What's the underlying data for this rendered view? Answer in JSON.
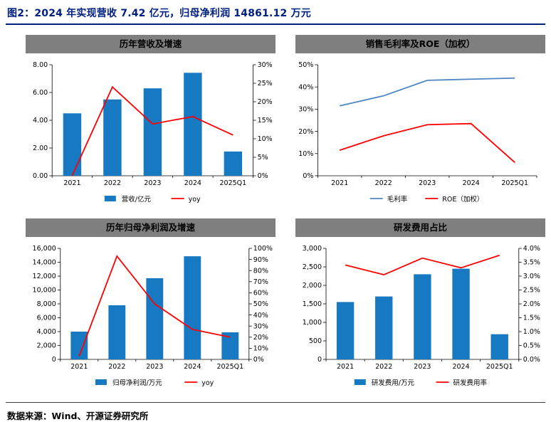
{
  "page": {
    "title": "图2：2024 年实现营收 7.42 亿元，归母净利润 14861.12 万元",
    "source": "数据来源：Wind、开源证券研究所"
  },
  "colors": {
    "bar": "#1779C1",
    "red": "#FF0000",
    "blue_line": "#4E86C4",
    "header_bg": "#7F7F7F",
    "title_text": "#002080",
    "footer_rule": "#404040",
    "axis": "#000000"
  },
  "chart_data": [
    {
      "type": "bar",
      "title": "历年营收及增速",
      "categories": [
        "2021",
        "2022",
        "2023",
        "2024",
        "2025Q1"
      ],
      "series": [
        {
          "name": "营收/亿元",
          "type": "bar",
          "axis": "left",
          "color_key": "bar",
          "values": [
            4.5,
            5.5,
            6.3,
            7.42,
            1.75
          ]
        },
        {
          "name": "yoy",
          "type": "line",
          "axis": "right",
          "color_key": "red",
          "values": [
            0,
            24,
            14,
            16,
            11
          ]
        }
      ],
      "left_axis": {
        "min": 0,
        "max": 8,
        "step": 2,
        "format": "decimal2"
      },
      "right_axis": {
        "min": 0,
        "max": 30,
        "step": 5,
        "format": "percent0"
      },
      "grid": false,
      "legend_position": "bottom"
    },
    {
      "type": "line",
      "title": "销售毛利率及ROE（加权）",
      "categories": [
        "2021",
        "2022",
        "2023",
        "2024",
        "2025Q1"
      ],
      "series": [
        {
          "name": "毛利率",
          "type": "line",
          "axis": "left",
          "color_key": "blue_line",
          "values": [
            31.5,
            36,
            43,
            43.5,
            44
          ]
        },
        {
          "name": "ROE（加权）",
          "type": "line",
          "axis": "left",
          "color_key": "red",
          "values": [
            11.5,
            18,
            23,
            23.5,
            6
          ]
        }
      ],
      "left_axis": {
        "min": 0,
        "max": 50,
        "step": 10,
        "format": "percent0"
      },
      "grid": false,
      "legend_position": "bottom"
    },
    {
      "type": "bar",
      "title": "历年归母净利润及增速",
      "categories": [
        "2021",
        "2022",
        "2023",
        "2024",
        "2025Q1"
      ],
      "series": [
        {
          "name": "归母净利润/万元",
          "type": "bar",
          "axis": "left",
          "color_key": "bar",
          "values": [
            4000,
            7800,
            11700,
            14861,
            3900
          ]
        },
        {
          "name": "yoy",
          "type": "line",
          "axis": "right",
          "color_key": "red",
          "values": [
            3,
            93,
            50,
            27,
            20
          ]
        }
      ],
      "left_axis": {
        "min": 0,
        "max": 16000,
        "step": 2000,
        "format": "thousands"
      },
      "right_axis": {
        "min": 0,
        "max": 100,
        "step": 10,
        "format": "percent0"
      },
      "grid": false,
      "legend_position": "bottom"
    },
    {
      "type": "bar",
      "title": "研发费用占比",
      "categories": [
        "2021",
        "2022",
        "2023",
        "2024",
        "2025Q1"
      ],
      "series": [
        {
          "name": "研发费用/万元",
          "type": "bar",
          "axis": "left",
          "color_key": "bar",
          "values": [
            1550,
            1700,
            2300,
            2450,
            680
          ]
        },
        {
          "name": "研发费用率",
          "type": "line",
          "axis": "right",
          "color_key": "red",
          "values": [
            3.4,
            3.05,
            3.65,
            3.3,
            3.75
          ]
        }
      ],
      "left_axis": {
        "min": 0,
        "max": 3000,
        "step": 500,
        "format": "thousands"
      },
      "right_axis": {
        "min": 0,
        "max": 4,
        "step": 0.5,
        "format": "percent1"
      },
      "grid": false,
      "legend_position": "bottom"
    }
  ]
}
